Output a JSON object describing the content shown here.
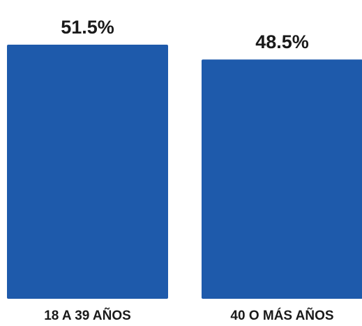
{
  "chart_data": {
    "type": "bar",
    "categories": [
      "18 A 39 AÑOS",
      "40 O MÁS AÑOS"
    ],
    "values": [
      51.5,
      48.5
    ],
    "data_labels": [
      "51.5%",
      "48.5%"
    ],
    "title": "",
    "xlabel": "",
    "ylabel": "",
    "ylim": [
      0,
      51.5
    ],
    "grid": false,
    "legend": "none",
    "bar_color": "#1e5aab"
  }
}
